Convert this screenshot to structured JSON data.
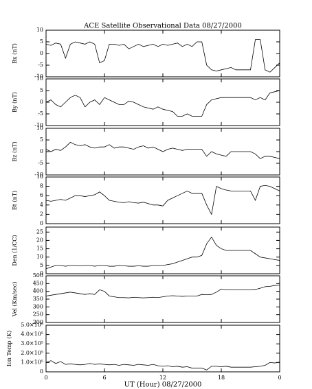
{
  "chart_data": [
    {
      "type": "line",
      "title": "ACE Satellite Observational Data   08/27/2000",
      "y_label": "Bx (nT)",
      "color": "#000000",
      "x": [
        0,
        0.5,
        1,
        1.5,
        2,
        2.5,
        3,
        3.5,
        4,
        4.5,
        5,
        5.5,
        6,
        6.5,
        7,
        7.5,
        8,
        8.5,
        9,
        9.5,
        10,
        10.5,
        11,
        11.5,
        12,
        12.5,
        13,
        13.5,
        14,
        14.5,
        15,
        15.5,
        16,
        16.5,
        17,
        17.5,
        18,
        18.5,
        19,
        19.5,
        20,
        20.5,
        21,
        21.5,
        22,
        22.5,
        23,
        23.5,
        24
      ],
      "values": [
        4,
        3.5,
        4.5,
        4,
        -2,
        4,
        5,
        4.5,
        4,
        5,
        4,
        -4,
        -3,
        4,
        4,
        3.5,
        4,
        2,
        3,
        4,
        3,
        3.5,
        4,
        3,
        4,
        3.5,
        4,
        4.5,
        3,
        4,
        3,
        5,
        5,
        -5,
        -7,
        -7.5,
        -7,
        -6.5,
        -6,
        -7,
        -7,
        -7,
        -7,
        6,
        6,
        -7,
        -8,
        -6,
        -4
      ],
      "xlim": [
        0,
        24
      ],
      "ylim": [
        -10,
        10
      ],
      "yticks": [
        -10,
        -5,
        0,
        5,
        10
      ]
    },
    {
      "type": "line",
      "y_label": "By (nT)",
      "color": "#000000",
      "x": [
        0,
        0.5,
        1,
        1.5,
        2,
        2.5,
        3,
        3.5,
        4,
        4.5,
        5,
        5.5,
        6,
        6.5,
        7,
        7.5,
        8,
        8.5,
        9,
        9.5,
        10,
        10.5,
        11,
        11.5,
        12,
        12.5,
        13,
        13.5,
        14,
        14.5,
        15,
        15.5,
        16,
        16.5,
        17,
        17.5,
        18,
        18.5,
        19,
        19.5,
        20,
        20.5,
        21,
        21.5,
        22,
        22.5,
        23,
        23.5,
        24
      ],
      "values": [
        0,
        1,
        -1,
        -2,
        0,
        2,
        3,
        2,
        -2,
        0,
        1,
        -1,
        2,
        1,
        0,
        -1,
        -1,
        0.5,
        0,
        -1,
        -2,
        -2.5,
        -3,
        -2,
        -3,
        -3.5,
        -4,
        -6,
        -6,
        -5,
        -6,
        -6,
        -6,
        -1,
        1,
        1.5,
        2,
        2,
        2,
        2,
        2,
        2,
        2,
        1,
        2,
        1,
        4,
        4.5,
        5
      ],
      "xlim": [
        0,
        24
      ],
      "ylim": [
        -10,
        10
      ],
      "yticks": [
        -10,
        -5,
        0,
        5,
        10
      ]
    },
    {
      "type": "line",
      "y_label": "Bz (nT)",
      "color": "#000000",
      "x": [
        0,
        0.5,
        1,
        1.5,
        2,
        2.5,
        3,
        3.5,
        4,
        4.5,
        5,
        5.5,
        6,
        6.5,
        7,
        7.5,
        8,
        8.5,
        9,
        9.5,
        10,
        10.5,
        11,
        11.5,
        12,
        12.5,
        13,
        13.5,
        14,
        14.5,
        15,
        15.5,
        16,
        16.5,
        17,
        17.5,
        18,
        18.5,
        19,
        19.5,
        20,
        20.5,
        21,
        21.5,
        22,
        22.5,
        23,
        23.5,
        24
      ],
      "values": [
        1,
        0,
        1,
        0.5,
        2,
        4,
        3,
        2.5,
        3,
        2,
        1.5,
        2,
        2,
        3,
        1.5,
        2,
        2,
        1.5,
        1,
        2,
        2.5,
        1.5,
        2,
        1,
        0,
        1,
        1.5,
        1,
        0.5,
        1,
        1,
        1,
        1,
        -2,
        0,
        -1,
        -1.5,
        -2,
        0,
        0,
        0,
        0,
        0,
        -1,
        -3,
        -2,
        -2,
        -2.5,
        -3
      ],
      "xlim": [
        0,
        24
      ],
      "ylim": [
        -10,
        10
      ],
      "yticks": [
        -10,
        -5,
        0,
        5,
        10
      ]
    },
    {
      "type": "line",
      "y_label": "Bt (nT)",
      "color": "#000000",
      "x": [
        0,
        0.5,
        1,
        1.5,
        2,
        2.5,
        3,
        3.5,
        4,
        4.5,
        5,
        5.5,
        6,
        6.5,
        7,
        7.5,
        8,
        8.5,
        9,
        9.5,
        10,
        10.5,
        11,
        11.5,
        12,
        12.5,
        13,
        13.5,
        14,
        14.5,
        15,
        15.5,
        16,
        16.5,
        17,
        17.5,
        18,
        18.5,
        19,
        19.5,
        20,
        20.5,
        21,
        21.5,
        22,
        22.5,
        23,
        23.5,
        24
      ],
      "values": [
        5,
        4.8,
        5,
        5.2,
        5,
        5.5,
        6,
        6,
        5.8,
        6,
        6.2,
        6.8,
        6,
        5,
        4.8,
        4.6,
        4.5,
        4.7,
        4.5,
        4.4,
        4.6,
        4.3,
        4,
        4,
        3.8,
        5,
        5.5,
        6,
        6.5,
        7,
        6.5,
        6.5,
        6.5,
        4,
        2,
        8,
        7.5,
        7.2,
        7,
        7,
        7,
        7,
        7,
        5,
        8,
        8.2,
        8,
        7.5,
        7
      ],
      "xlim": [
        0,
        24
      ],
      "ylim": [
        0,
        10
      ],
      "yticks": [
        0,
        2,
        4,
        6,
        8,
        10
      ]
    },
    {
      "type": "line",
      "y_label": "Den (1/CC)",
      "color": "#000000",
      "x": [
        0,
        0.5,
        1,
        1.5,
        2,
        2.5,
        3,
        3.5,
        4,
        4.5,
        5,
        5.5,
        6,
        6.5,
        7,
        7.5,
        8,
        8.5,
        9,
        9.5,
        10,
        10.5,
        11,
        11.5,
        12,
        12.5,
        13,
        13.5,
        14,
        14.5,
        15,
        15.5,
        16,
        16.5,
        17,
        17.5,
        18,
        18.5,
        19,
        19.5,
        20,
        20.5,
        21,
        21.5,
        22,
        22.5,
        23,
        23.5,
        24
      ],
      "values": [
        3,
        4,
        5,
        5,
        4.5,
        5,
        5,
        4.8,
        5,
        5,
        4.5,
        5,
        5,
        4.5,
        4.5,
        5,
        4.8,
        4.5,
        4.5,
        4.8,
        4.5,
        4.5,
        5,
        5,
        5,
        5.5,
        6,
        7,
        8,
        9,
        10,
        10,
        11,
        18,
        22,
        17,
        15,
        14,
        14,
        14,
        14,
        14,
        14,
        12,
        10,
        9.5,
        9,
        8.5,
        8
      ],
      "xlim": [
        0,
        24
      ],
      "ylim": [
        0,
        28
      ],
      "yticks": [
        0,
        5,
        10,
        15,
        20,
        25
      ]
    },
    {
      "type": "line",
      "y_label": "Vel (Km/sec)",
      "color": "#000000",
      "x": [
        0,
        0.5,
        1,
        1.5,
        2,
        2.5,
        3,
        3.5,
        4,
        4.5,
        5,
        5.5,
        6,
        6.5,
        7,
        7.5,
        8,
        8.5,
        9,
        9.5,
        10,
        10.5,
        11,
        11.5,
        12,
        12.5,
        13,
        13.5,
        14,
        14.5,
        15,
        15.5,
        16,
        16.5,
        17,
        17.5,
        18,
        18.5,
        19,
        19.5,
        20,
        20.5,
        21,
        21.5,
        22,
        22.5,
        23,
        23.5,
        24
      ],
      "values": [
        370,
        375,
        380,
        385,
        390,
        395,
        390,
        385,
        380,
        385,
        380,
        410,
        400,
        370,
        365,
        360,
        360,
        358,
        362,
        360,
        358,
        360,
        362,
        360,
        365,
        370,
        372,
        370,
        368,
        370,
        370,
        370,
        380,
        378,
        380,
        395,
        415,
        410,
        410,
        410,
        410,
        410,
        410,
        412,
        420,
        430,
        432,
        438,
        440
      ],
      "xlim": [
        0,
        24
      ],
      "ylim": [
        200,
        500
      ],
      "yticks": [
        200,
        250,
        300,
        350,
        400,
        450,
        500
      ]
    },
    {
      "type": "line",
      "y_label": "Ion Temp (K)",
      "color": "#000000",
      "x_label": "UT (Hour)   08/27/2000",
      "x": [
        0,
        0.5,
        1,
        1.5,
        2,
        2.5,
        3,
        3.5,
        4,
        4.5,
        5,
        5.5,
        6,
        6.5,
        7,
        7.5,
        8,
        8.5,
        9,
        9.5,
        10,
        10.5,
        11,
        11.5,
        12,
        12.5,
        13,
        13.5,
        14,
        14.5,
        15,
        15.5,
        16,
        16.5,
        17,
        17.5,
        18,
        18.5,
        19,
        19.5,
        20,
        20.5,
        21,
        21.5,
        22,
        22.5,
        23,
        23.5,
        24
      ],
      "values": [
        100000,
        120000,
        90000,
        110000,
        80000,
        85000,
        80000,
        75000,
        80000,
        90000,
        80000,
        85000,
        80000,
        75000,
        80000,
        70000,
        80000,
        75000,
        70000,
        80000,
        75000,
        70000,
        80000,
        65000,
        60000,
        65000,
        55000,
        60000,
        50000,
        55000,
        40000,
        40000,
        40000,
        20000,
        60000,
        60000,
        55000,
        60000,
        50000,
        50000,
        50000,
        50000,
        50000,
        55000,
        60000,
        70000,
        100000,
        95000,
        105000
      ],
      "xlim": [
        0,
        24
      ],
      "ylim": [
        0,
        500000
      ],
      "yticks": [
        0,
        {
          "value": 100000,
          "label": "1.0×10⁵"
        },
        {
          "value": 200000,
          "label": "2.0×10⁵"
        },
        {
          "value": 300000,
          "label": "3.0×10⁵"
        },
        {
          "value": 400000,
          "label": "4.0×10⁵"
        },
        {
          "value": 500000,
          "label": "5.0×10⁵"
        }
      ],
      "xticks": [
        0,
        6,
        12,
        18,
        {
          "value": 24,
          "label": "0"
        }
      ]
    }
  ]
}
